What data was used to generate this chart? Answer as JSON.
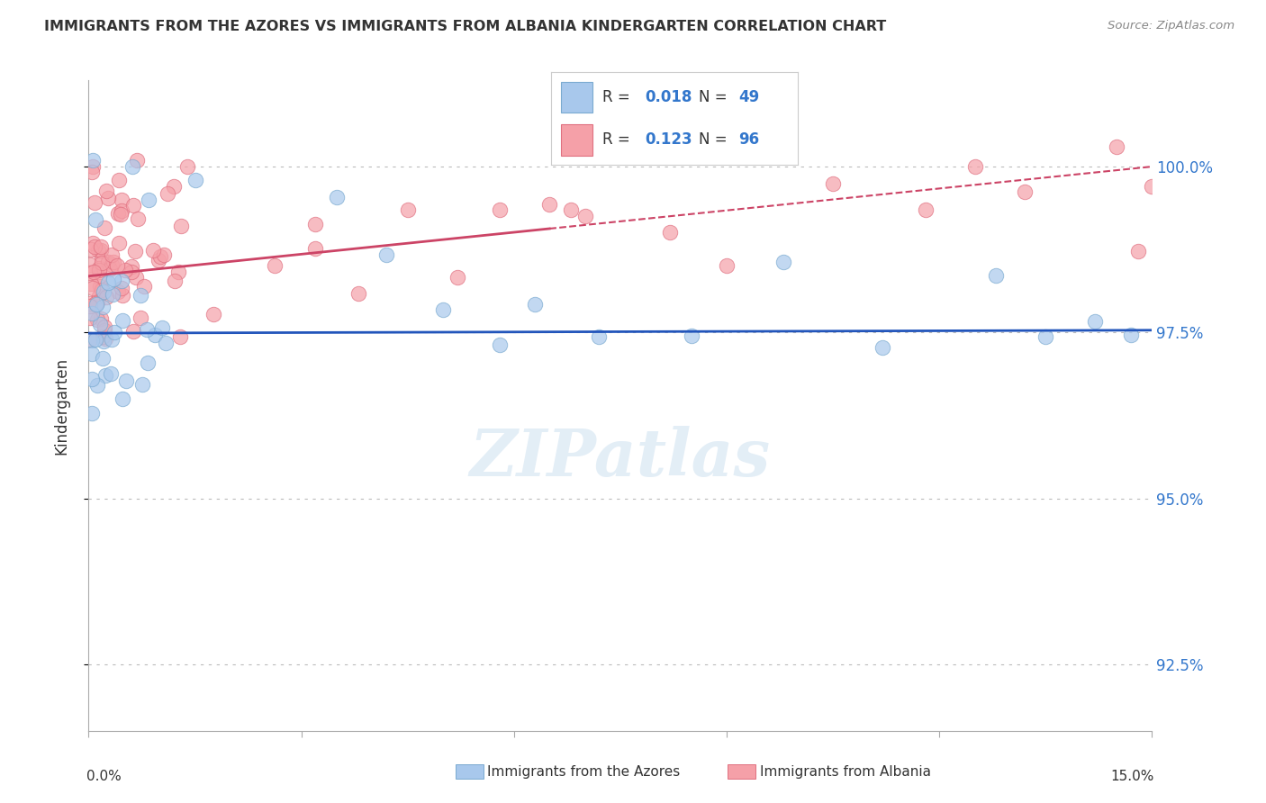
{
  "title": "IMMIGRANTS FROM THE AZORES VS IMMIGRANTS FROM ALBANIA KINDERGARTEN CORRELATION CHART",
  "source": "Source: ZipAtlas.com",
  "ylabel": "Kindergarten",
  "xlim": [
    0.0,
    15.0
  ],
  "ylim": [
    91.5,
    101.3
  ],
  "yticks": [
    92.5,
    95.0,
    97.5,
    100.0
  ],
  "ytick_labels": [
    "92.5%",
    "95.0%",
    "97.5%",
    "100.0%"
  ],
  "blue_scatter_color": "#a8c8ec",
  "blue_scatter_edge": "#7aaad0",
  "pink_scatter_color": "#f5a0a8",
  "pink_scatter_edge": "#e07080",
  "blue_line_color": "#2255bb",
  "pink_line_color": "#cc4466",
  "right_label_color": "#3377cc",
  "title_color": "#333333",
  "source_color": "#888888",
  "legend_r_color": "#3377cc",
  "legend_n_color": "#333333",
  "blue_r": "0.018",
  "blue_n": "49",
  "pink_r": "0.123",
  "pink_n": "96",
  "watermark": "ZIPatlas",
  "legend_label_blue": "Immigrants from the Azores",
  "legend_label_pink": "Immigrants from Albania",
  "blue_trend_intercept": 97.49,
  "blue_trend_slope": 0.003,
  "pink_trend_intercept": 98.35,
  "pink_trend_slope": 0.11,
  "pink_solid_end": 6.5
}
